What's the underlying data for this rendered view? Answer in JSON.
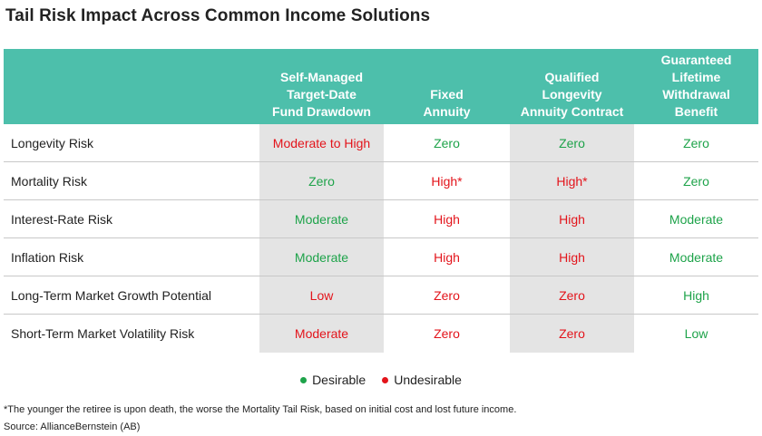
{
  "title": "Tail Risk Impact Across Common Income Solutions",
  "colors": {
    "header_bg": "#4dbfab",
    "desirable": "#1ea34a",
    "undesirable": "#e3141b",
    "shaded_column": "#e4e4e4"
  },
  "table": {
    "columns": [
      "",
      "Self-Managed\nTarget-Date\nFund Drawdown",
      "Fixed\nAnnuity",
      "Qualified\nLongevity\nAnnuity Contract",
      "Guaranteed\nLifetime\nWithdrawal\nBenefit"
    ],
    "rows": [
      {
        "label": "Longevity Risk",
        "cells": [
          {
            "text": "Moderate to High",
            "status": "undesirable"
          },
          {
            "text": "Zero",
            "status": "desirable"
          },
          {
            "text": "Zero",
            "status": "desirable"
          },
          {
            "text": "Zero",
            "status": "desirable"
          }
        ]
      },
      {
        "label": "Mortality  Risk",
        "cells": [
          {
            "text": "Zero",
            "status": "desirable"
          },
          {
            "text": "High*",
            "status": "undesirable"
          },
          {
            "text": "High*",
            "status": "undesirable"
          },
          {
            "text": "Zero",
            "status": "desirable"
          }
        ]
      },
      {
        "label": "Interest-Rate Risk",
        "cells": [
          {
            "text": "Moderate",
            "status": "desirable"
          },
          {
            "text": "High",
            "status": "undesirable"
          },
          {
            "text": "High",
            "status": "undesirable"
          },
          {
            "text": "Moderate",
            "status": "desirable"
          }
        ]
      },
      {
        "label": "Inflation Risk",
        "cells": [
          {
            "text": "Moderate",
            "status": "desirable"
          },
          {
            "text": "High",
            "status": "undesirable"
          },
          {
            "text": "High",
            "status": "undesirable"
          },
          {
            "text": "Moderate",
            "status": "desirable"
          }
        ]
      },
      {
        "label": "Long-Term Market Growth Potential",
        "cells": [
          {
            "text": "Low",
            "status": "undesirable"
          },
          {
            "text": "Zero",
            "status": "undesirable"
          },
          {
            "text": "Zero",
            "status": "undesirable"
          },
          {
            "text": "High",
            "status": "desirable"
          }
        ]
      },
      {
        "label": "Short-Term Market Volatility Risk",
        "cells": [
          {
            "text": "Moderate",
            "status": "undesirable"
          },
          {
            "text": "Zero",
            "status": "undesirable"
          },
          {
            "text": "Zero",
            "status": "undesirable"
          },
          {
            "text": "Low",
            "status": "desirable"
          }
        ]
      }
    ]
  },
  "legend": {
    "desirable": "Desirable",
    "undesirable": "Undesirable"
  },
  "footnote": "*The younger the retiree is upon death, the worse the Mortality Tail Risk, based on initial cost and lost future income.",
  "source": "Source: AllianceBernstein (AB)"
}
